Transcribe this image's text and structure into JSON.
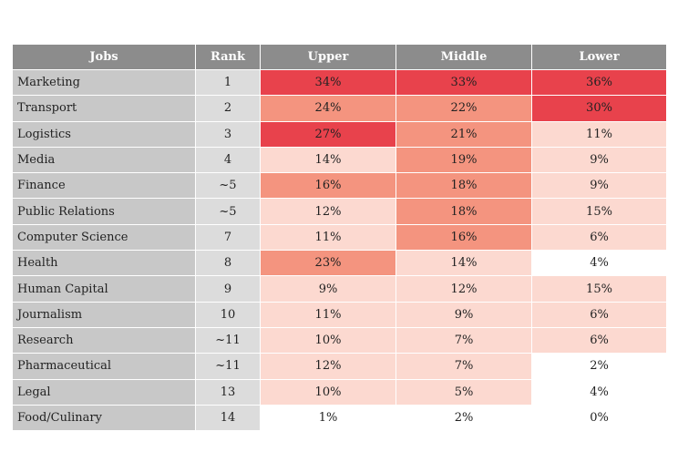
{
  "chart_data": {
    "type": "table",
    "columns": [
      "Jobs",
      "Rank",
      "Upper",
      "Middle",
      "Lower"
    ],
    "rows": [
      {
        "job": "Marketing",
        "rank": "1",
        "upper": "34%",
        "middle": "33%",
        "lower": "36%"
      },
      {
        "job": "Transport",
        "rank": "2",
        "upper": "24%",
        "middle": "22%",
        "lower": "30%"
      },
      {
        "job": "Logistics",
        "rank": "3",
        "upper": "27%",
        "middle": "21%",
        "lower": "11%"
      },
      {
        "job": "Media",
        "rank": "4",
        "upper": "14%",
        "middle": "19%",
        "lower": "9%"
      },
      {
        "job": "Finance",
        "rank": "~5",
        "upper": "16%",
        "middle": "18%",
        "lower": "9%"
      },
      {
        "job": "Public Relations",
        "rank": "~5",
        "upper": "12%",
        "middle": "18%",
        "lower": "15%"
      },
      {
        "job": "Computer Science",
        "rank": "7",
        "upper": "11%",
        "middle": "16%",
        "lower": "6%"
      },
      {
        "job": "Health",
        "rank": "8",
        "upper": "23%",
        "middle": "14%",
        "lower": "4%"
      },
      {
        "job": "Human Capital",
        "rank": "9",
        "upper": "9%",
        "middle": "12%",
        "lower": "15%"
      },
      {
        "job": "Journalism",
        "rank": "10",
        "upper": "11%",
        "middle": "9%",
        "lower": "6%"
      },
      {
        "job": "Research",
        "rank": "~11",
        "upper": "10%",
        "middle": "7%",
        "lower": "6%"
      },
      {
        "job": "Pharmaceutical",
        "rank": "~11",
        "upper": "12%",
        "middle": "7%",
        "lower": "2%"
      },
      {
        "job": "Legal",
        "rank": "13",
        "upper": "10%",
        "middle": "5%",
        "lower": "4%"
      },
      {
        "job": "Food/Culinary",
        "rank": "14",
        "upper": "1%",
        "middle": "2%",
        "lower": "0%"
      }
    ],
    "colors": {
      "header": "#8c8c8c",
      "job_column": "#c8c8c8",
      "rank_column": "#dcdcdc",
      "high": "#e8424c",
      "medium": "#f4947f",
      "low": "#fcd9d0",
      "none": "#ffffff"
    }
  }
}
